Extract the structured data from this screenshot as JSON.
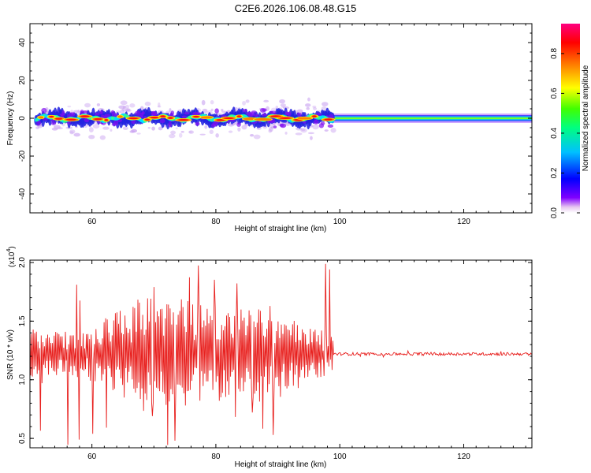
{
  "figure": {
    "title": "C2E6.2026.106.08.48.G15"
  },
  "chart_data": [
    {
      "type": "heatmap",
      "title": "C2E6.2026.106.08.48.G15",
      "xlabel": "Height of straight line (km)",
      "ylabel": "Frequency (Hz)",
      "xlim": [
        50,
        131
      ],
      "ylim": [
        -50,
        50
      ],
      "x_ticks": [
        60,
        80,
        100,
        120
      ],
      "y_ticks": [
        40,
        20,
        0,
        -20,
        -40
      ],
      "colorbar": {
        "label": "Normalized spectral amplitude",
        "range": [
          0.0,
          0.95
        ],
        "ticks": [
          "0.0",
          "0.2",
          "0.4",
          "0.6",
          "0.8"
        ],
        "colormap": "rainbow (violet to red)"
      },
      "noisy_region_km": [
        51,
        99
      ],
      "steady_region_km": [
        99,
        131
      ],
      "center_frequency_hz": 0,
      "scatter_halfwidth_hz": [
        -10,
        10
      ]
    },
    {
      "type": "line",
      "xlabel": "Height of straight line (km)",
      "ylabel": "SNR (10 * v/v)",
      "y_multiplier": "(x10",
      "y_multiplier_exp": "4",
      "xlim": [
        50,
        131
      ],
      "ylim": [
        0.42,
        2.02
      ],
      "x_ticks": [
        60,
        80,
        100,
        120
      ],
      "y_ticks": [
        "2.0",
        "1.5",
        "1.0",
        "0.5"
      ],
      "series": [
        {
          "color": "#e8201e",
          "baseline": 1.22,
          "noisy_region_km": [
            50,
            99
          ],
          "noisy_range": [
            0.43,
            2.02
          ],
          "steady_region_km": [
            99,
            131
          ],
          "steady_range": [
            1.19,
            1.26
          ]
        }
      ]
    }
  ]
}
